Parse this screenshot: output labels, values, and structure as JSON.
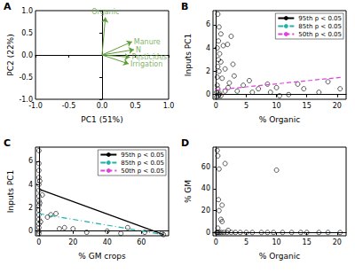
{
  "chart_data": [
    {
      "type": "biplot",
      "label": "A",
      "x_label": "PC1 (51%)",
      "y_label": "PC2 (22%)",
      "xlim": [
        -1.0,
        1.0
      ],
      "ylim": [
        -1.0,
        1.0
      ],
      "xticks": [
        {
          "value": -1.0,
          "label": "-1.0"
        },
        {
          "value": -0.5,
          "label": "-0.5"
        },
        {
          "value": 0,
          "label": "0.0"
        },
        {
          "value": 0.5,
          "label": "0.5"
        },
        {
          "value": 1.0,
          "label": "1.0"
        }
      ],
      "yticks": [
        {
          "value": -1.0,
          "label": "-1.0"
        },
        {
          "value": -0.5,
          "label": "-0.5"
        },
        {
          "value": 0,
          "label": "0.0"
        },
        {
          "value": 0.5,
          "label": "0.5"
        },
        {
          "value": 1.0,
          "label": "1.0"
        }
      ],
      "color": "#5e9e3a",
      "loadings": {
        "origin": [
          0,
          0
        ],
        "names": [
          "Organic",
          "Manure",
          "N",
          "Pesticides",
          "Irrigation"
        ],
        "x": [
          0.05,
          0.45,
          0.48,
          0.42,
          0.4
        ],
        "y": [
          0.85,
          0.3,
          0.12,
          -0.05,
          -0.2
        ]
      }
    },
    {
      "type": "scatter",
      "label": "B",
      "x_label": "% Organic",
      "y_label": "Inputs PC1",
      "xlim": [
        -0.5,
        21.5
      ],
      "ylim": [
        -0.4,
        7.2
      ],
      "xticks": [
        0,
        5,
        10,
        15,
        20
      ],
      "yticks": [
        0,
        2,
        4,
        6
      ],
      "legend": "top right",
      "color": "#000000",
      "marker": "circle",
      "points": {
        "x": [
          0.3,
          0.5,
          0.8,
          0.4,
          0.2,
          1.2,
          0.6,
          2.5,
          1.9,
          0.4,
          0.8,
          0.3,
          1.5,
          2.8,
          0.5,
          0.2,
          1.0,
          3.0,
          2.2,
          5.5,
          0.3,
          0.1,
          0.5,
          0.8,
          1.5,
          2.0,
          3.5,
          4.5,
          6.0,
          7.0,
          8.5,
          9.0,
          10.0,
          13.5,
          14.5,
          12.0,
          10.5,
          20.5,
          17.0,
          18.5,
          0.1,
          0.2,
          0.4,
          0.6
        ],
        "y": [
          6.9,
          5.8,
          5.2,
          4.6,
          4.0,
          4.2,
          3.5,
          5.0,
          4.3,
          3.0,
          2.8,
          2.4,
          2.2,
          2.6,
          2.0,
          1.5,
          1.4,
          1.6,
          1.0,
          1.2,
          0.5,
          0.2,
          0.0,
          -0.1,
          0.3,
          0.6,
          0.3,
          0.8,
          0.2,
          0.5,
          0.9,
          0.2,
          0.6,
          0.9,
          0.5,
          0.0,
          -0.1,
          0.5,
          0.2,
          1.1,
          -0.2,
          0.8,
          -0.1,
          0.1
        ]
      },
      "lines": [
        {
          "name": "95th p < 0.05",
          "color": "#000000",
          "line_style": "solid",
          "values": []
        },
        {
          "name": "85th p < 0.05",
          "color": "#20b2aa",
          "line_style": "dashdot",
          "values": []
        },
        {
          "name": "50th p < 0.05",
          "color": "#e040e0",
          "line_style": "dashed",
          "values": [
            [
              0,
              0.4
            ],
            [
              21,
              1.5
            ]
          ]
        }
      ]
    },
    {
      "type": "scatter",
      "label": "C",
      "x_label": "% GM crops",
      "y_label": "Inputs PC1",
      "xlim": [
        -2,
        76
      ],
      "ylim": [
        -0.4,
        7.2
      ],
      "xticks": [
        0,
        20,
        40,
        60
      ],
      "yticks": [
        0,
        2,
        4,
        6
      ],
      "legend": "top right",
      "color": "#000000",
      "marker": "circle",
      "points": {
        "x": [
          0,
          0,
          0,
          0,
          0,
          0,
          0,
          0,
          0,
          0,
          0,
          0,
          0,
          0,
          0,
          0,
          0.5,
          0.5,
          1,
          2,
          5,
          7,
          10,
          12,
          15,
          20,
          28,
          40,
          48,
          52,
          62,
          72,
          73
        ],
        "y": [
          6.9,
          5.8,
          5.2,
          4.6,
          4.0,
          3.5,
          3.0,
          2.6,
          2.2,
          1.8,
          1.4,
          1.0,
          0.6,
          0.3,
          0.0,
          -0.2,
          4.3,
          2.4,
          0.8,
          3.1,
          1.2,
          1.4,
          1.5,
          0.2,
          0.3,
          0.2,
          -0.1,
          0.0,
          -0.2,
          0.3,
          -0.1,
          -0.2,
          -0.3
        ]
      },
      "lines": [
        {
          "name": "95th p < 0.05",
          "color": "#000000",
          "line_style": "solid",
          "values": [
            [
              0,
              3.6
            ],
            [
              73,
              -0.3
            ]
          ]
        },
        {
          "name": "85th p < 0.05",
          "color": "#20b2aa",
          "line_style": "dashdot",
          "values": [
            [
              0,
              1.5
            ],
            [
              73,
              -0.3
            ]
          ]
        },
        {
          "name": "50th p < 0.05",
          "color": "#e040e0",
          "line_style": "dashed",
          "values": []
        }
      ]
    },
    {
      "type": "scatter",
      "label": "D",
      "x_label": "% Organic",
      "y_label": "% GM",
      "xlim": [
        -0.5,
        21.5
      ],
      "ylim": [
        -3,
        78
      ],
      "xticks": [
        0,
        5,
        10,
        15,
        20
      ],
      "yticks": [
        0,
        20,
        40,
        60
      ],
      "color": "#000000",
      "marker": "circle",
      "points": {
        "x": [
          0.3,
          0.2,
          0.5,
          1.5,
          10.0,
          0.4,
          1.0,
          0.5,
          0.8,
          1.0,
          0.1,
          0.2,
          0.4,
          0.6,
          0.9,
          1.3,
          1.8,
          2.5,
          3.2,
          4.0,
          5.0,
          6.0,
          7.5,
          8.5,
          9.5,
          11.0,
          12.5,
          14.0,
          15.0,
          17.0,
          18.5,
          20.5,
          2.0,
          0.3
        ],
        "y": [
          70,
          75,
          58,
          63,
          57,
          30,
          25,
          20,
          12,
          10,
          0,
          0,
          0,
          0,
          0,
          0,
          0,
          0,
          0,
          0,
          0,
          0,
          0,
          0,
          0,
          0,
          0,
          0,
          0,
          0,
          0,
          0,
          2,
          4
        ]
      }
    }
  ]
}
